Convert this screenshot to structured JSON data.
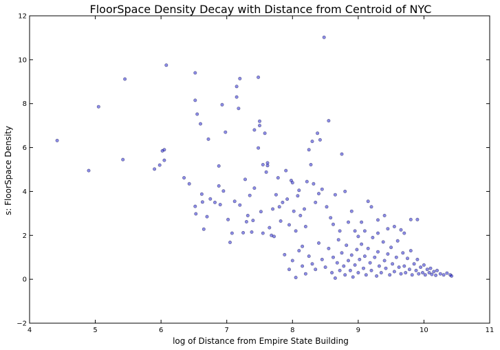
{
  "chart_data": {
    "type": "scatter",
    "title": "FloorSpace Density Decay with Distance from Centroid of NYC",
    "xlabel": "log of Distance from Empire State Building",
    "ylabel": "s: FloorSpace Density",
    "xlim": [
      4,
      11
    ],
    "ylim": [
      -2,
      12
    ],
    "xticks": [
      4,
      5,
      6,
      7,
      8,
      9,
      10,
      11
    ],
    "yticks": [
      -2,
      0,
      2,
      4,
      6,
      8,
      10,
      12
    ],
    "grid": false,
    "legend": "none",
    "colors": {
      "marker_fill": "#0000c8",
      "marker_edge": "#00003a"
    },
    "points": [
      [
        4.42,
        6.32
      ],
      [
        4.9,
        4.95
      ],
      [
        5.05,
        7.86
      ],
      [
        5.42,
        5.45
      ],
      [
        5.45,
        9.12
      ],
      [
        5.9,
        5.02
      ],
      [
        5.98,
        5.2
      ],
      [
        6.02,
        5.85
      ],
      [
        6.05,
        5.9
      ],
      [
        6.05,
        5.42
      ],
      [
        6.08,
        9.75
      ],
      [
        6.35,
        4.62
      ],
      [
        6.43,
        4.35
      ],
      [
        6.52,
        9.4
      ],
      [
        6.52,
        8.15
      ],
      [
        6.55,
        7.52
      ],
      [
        6.6,
        7.08
      ],
      [
        6.52,
        3.32
      ],
      [
        6.53,
        2.98
      ],
      [
        6.62,
        3.88
      ],
      [
        6.63,
        3.52
      ],
      [
        6.65,
        2.28
      ],
      [
        6.7,
        2.85
      ],
      [
        6.72,
        6.38
      ],
      [
        6.75,
        3.66
      ],
      [
        6.82,
        3.5
      ],
      [
        6.88,
        4.25
      ],
      [
        6.88,
        5.16
      ],
      [
        6.9,
        3.4
      ],
      [
        6.93,
        7.95
      ],
      [
        6.95,
        4.02
      ],
      [
        6.98,
        6.7
      ],
      [
        7.02,
        2.72
      ],
      [
        7.05,
        1.68
      ],
      [
        7.08,
        2.1
      ],
      [
        7.12,
        3.55
      ],
      [
        7.15,
        8.78
      ],
      [
        7.15,
        8.3
      ],
      [
        7.18,
        7.78
      ],
      [
        7.2,
        9.14
      ],
      [
        7.2,
        3.38
      ],
      [
        7.25,
        2.12
      ],
      [
        7.28,
        4.55
      ],
      [
        7.3,
        2.62
      ],
      [
        7.32,
        2.9
      ],
      [
        7.35,
        3.82
      ],
      [
        7.38,
        2.15
      ],
      [
        7.4,
        2.68
      ],
      [
        7.42,
        4.15
      ],
      [
        7.42,
        6.8
      ],
      [
        7.48,
        9.2
      ],
      [
        7.48,
        5.98
      ],
      [
        7.5,
        7.2
      ],
      [
        7.5,
        7.0
      ],
      [
        7.52,
        3.08
      ],
      [
        7.55,
        5.22
      ],
      [
        7.55,
        2.1
      ],
      [
        7.58,
        6.65
      ],
      [
        7.6,
        4.88
      ],
      [
        7.62,
        5.3
      ],
      [
        7.62,
        5.18
      ],
      [
        7.65,
        2.35
      ],
      [
        7.68,
        2.0
      ],
      [
        7.7,
        3.2
      ],
      [
        7.72,
        1.95
      ],
      [
        7.75,
        3.85
      ],
      [
        7.78,
        4.62
      ],
      [
        7.8,
        3.3
      ],
      [
        7.82,
        2.65
      ],
      [
        7.85,
        3.5
      ],
      [
        7.88,
        1.12
      ],
      [
        7.9,
        4.95
      ],
      [
        7.92,
        3.65
      ],
      [
        7.95,
        2.48
      ],
      [
        7.98,
        4.5
      ],
      [
        8.0,
        4.4
      ],
      [
        8.02,
        3.1
      ],
      [
        8.05,
        2.2
      ],
      [
        8.08,
        3.8
      ],
      [
        8.1,
        4.05
      ],
      [
        8.12,
        2.9
      ],
      [
        8.15,
        1.5
      ],
      [
        8.18,
        3.2
      ],
      [
        8.2,
        2.4
      ],
      [
        8.22,
        4.45
      ],
      [
        8.25,
        5.9
      ],
      [
        8.28,
        5.22
      ],
      [
        8.3,
        6.28
      ],
      [
        8.32,
        4.35
      ],
      [
        8.35,
        3.5
      ],
      [
        8.38,
        6.65
      ],
      [
        8.4,
        3.9
      ],
      [
        8.42,
        6.35
      ],
      [
        8.45,
        4.1
      ],
      [
        8.48,
        11.02
      ],
      [
        8.52,
        3.3
      ],
      [
        8.55,
        7.22
      ],
      [
        8.58,
        2.8
      ],
      [
        8.62,
        2.5
      ],
      [
        8.65,
        3.85
      ],
      [
        8.72,
        2.2
      ],
      [
        8.75,
        5.7
      ],
      [
        8.8,
        4.0
      ],
      [
        8.85,
        2.6
      ],
      [
        8.9,
        3.1
      ],
      [
        8.95,
        2.2
      ],
      [
        9.05,
        2.6
      ],
      [
        9.15,
        3.55
      ],
      [
        9.2,
        3.3
      ],
      [
        9.3,
        2.7
      ],
      [
        9.4,
        2.9
      ],
      [
        9.55,
        2.4
      ],
      [
        9.7,
        2.1
      ],
      [
        9.8,
        2.72
      ],
      [
        9.9,
        2.72
      ],
      [
        7.95,
        0.45
      ],
      [
        8.05,
        0.08
      ],
      [
        8.0,
        0.85
      ],
      [
        8.1,
        1.3
      ],
      [
        8.15,
        0.6
      ],
      [
        8.2,
        0.25
      ],
      [
        8.25,
        1.05
      ],
      [
        8.3,
        0.7
      ],
      [
        8.35,
        0.45
      ],
      [
        8.4,
        1.65
      ],
      [
        8.45,
        0.9
      ],
      [
        8.5,
        0.55
      ],
      [
        8.55,
        1.4
      ],
      [
        8.6,
        0.3
      ],
      [
        8.62,
        1.0
      ],
      [
        8.65,
        0.05
      ],
      [
        8.68,
        0.75
      ],
      [
        8.7,
        1.8
      ],
      [
        8.72,
        0.4
      ],
      [
        8.75,
        1.2
      ],
      [
        8.78,
        0.6
      ],
      [
        8.8,
        0.2
      ],
      [
        8.82,
        1.55
      ],
      [
        8.85,
        0.85
      ],
      [
        8.88,
        0.4
      ],
      [
        8.9,
        1.1
      ],
      [
        8.92,
        0.1
      ],
      [
        8.95,
        0.65
      ],
      [
        8.98,
        1.35
      ],
      [
        9.0,
        0.3
      ],
      [
        9.02,
        0.9
      ],
      [
        9.05,
        1.6
      ],
      [
        9.08,
        0.5
      ],
      [
        9.1,
        1.05
      ],
      [
        9.12,
        0.2
      ],
      [
        9.15,
        1.4
      ],
      [
        9.18,
        0.75
      ],
      [
        9.2,
        0.4
      ],
      [
        9.22,
        1.9
      ],
      [
        9.25,
        1.0
      ],
      [
        9.28,
        0.15
      ],
      [
        9.3,
        1.25
      ],
      [
        9.32,
        0.6
      ],
      [
        9.35,
        0.3
      ],
      [
        9.38,
        1.7
      ],
      [
        9.4,
        0.85
      ],
      [
        9.42,
        0.5
      ],
      [
        9.45,
        1.15
      ],
      [
        9.48,
        0.2
      ],
      [
        9.5,
        1.45
      ],
      [
        9.52,
        0.7
      ],
      [
        9.55,
        0.35
      ],
      [
        9.58,
        1.0
      ],
      [
        9.6,
        1.75
      ],
      [
        9.62,
        0.55
      ],
      [
        9.65,
        0.25
      ],
      [
        9.68,
        1.2
      ],
      [
        9.7,
        0.6
      ],
      [
        9.72,
        0.3
      ],
      [
        9.75,
        0.95
      ],
      [
        9.78,
        0.45
      ],
      [
        9.8,
        1.3
      ],
      [
        9.82,
        0.2
      ],
      [
        9.85,
        0.7
      ],
      [
        9.88,
        0.4
      ],
      [
        9.9,
        0.9
      ],
      [
        9.92,
        0.25
      ],
      [
        9.95,
        0.55
      ],
      [
        9.98,
        0.3
      ],
      [
        10.0,
        0.65
      ],
      [
        10.02,
        0.2
      ],
      [
        10.05,
        0.45
      ],
      [
        10.08,
        0.3
      ],
      [
        10.1,
        0.5
      ],
      [
        10.12,
        0.22
      ],
      [
        10.15,
        0.35
      ],
      [
        10.18,
        0.18
      ],
      [
        10.2,
        0.4
      ],
      [
        10.25,
        0.25
      ],
      [
        10.3,
        0.2
      ],
      [
        10.4,
        0.2
      ],
      [
        10.35,
        0.28
      ],
      [
        10.42,
        0.15
      ],
      [
        9.1,
        2.2
      ],
      [
        9.3,
        2.1
      ],
      [
        9.45,
        2.3
      ],
      [
        9.65,
        2.25
      ],
      [
        9.0,
        1.95
      ]
    ]
  }
}
